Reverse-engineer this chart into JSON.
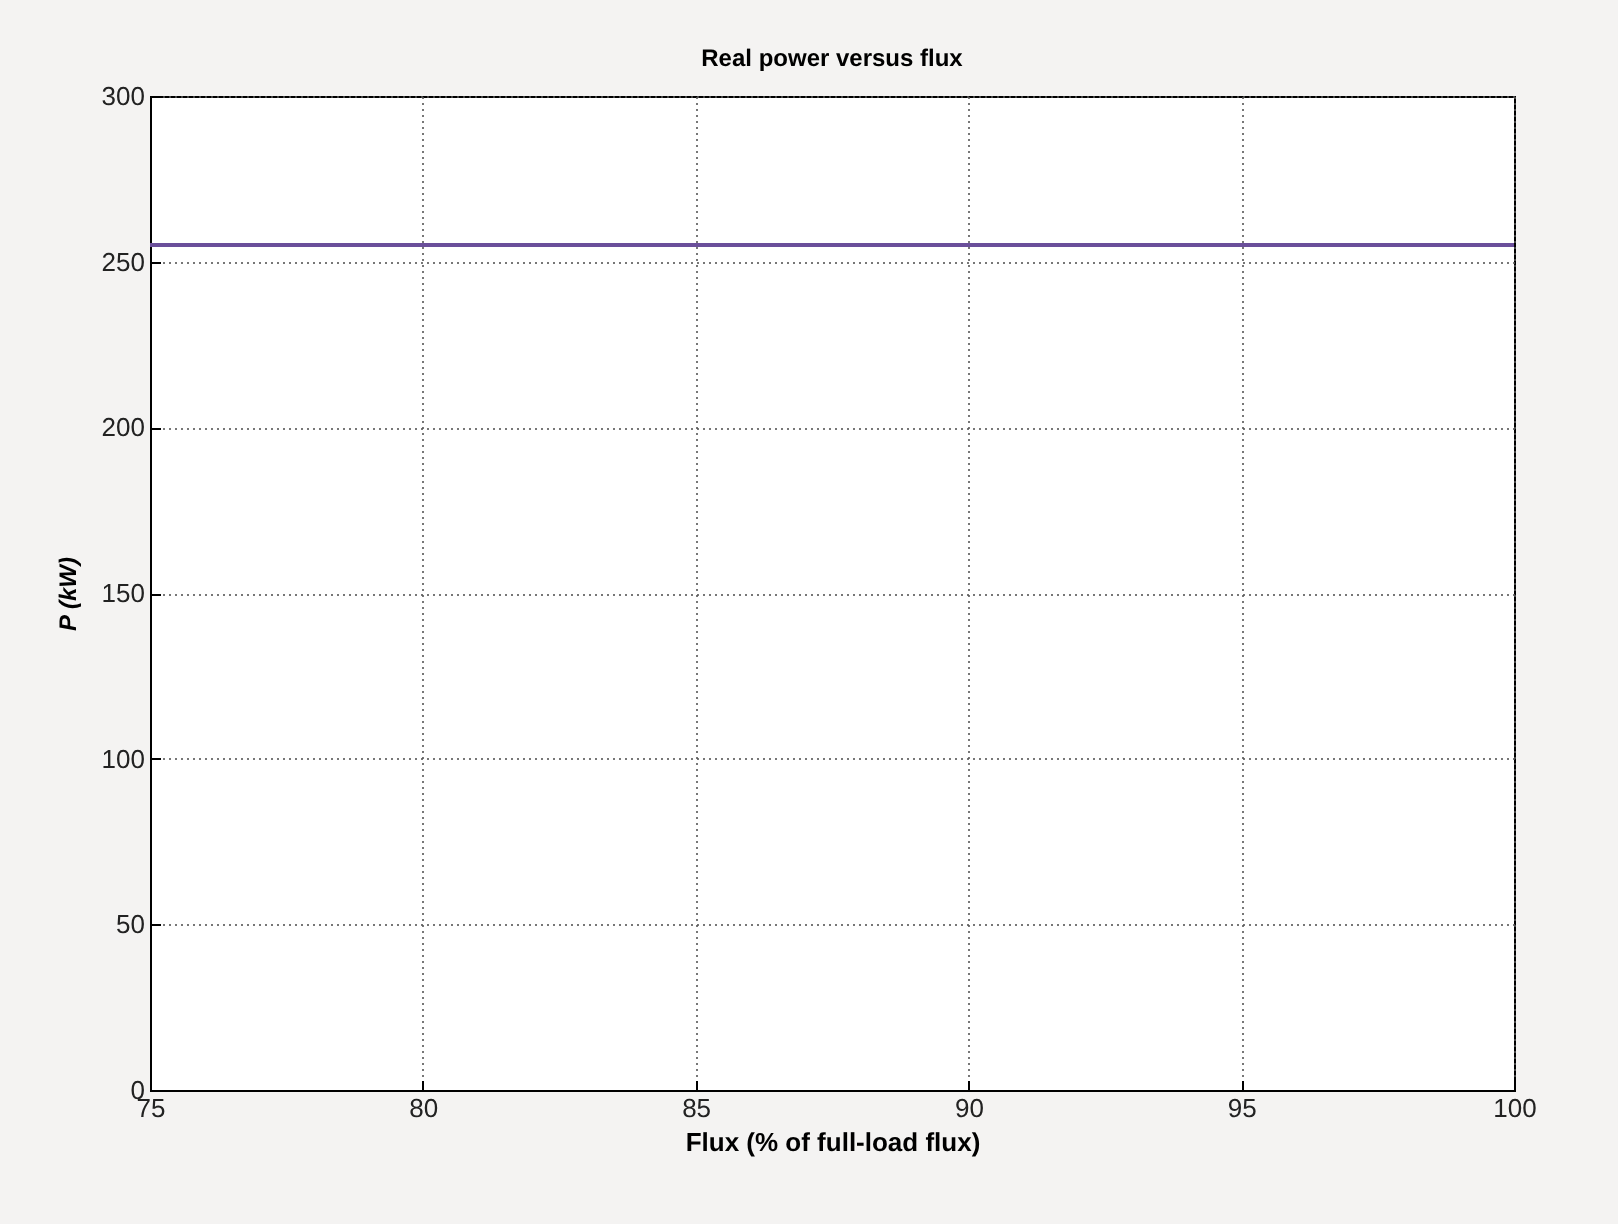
{
  "chart_data": {
    "type": "line",
    "title": "Real power versus flux",
    "xlabel": "Flux (% of full-load flux)",
    "ylabel": "P (kW)",
    "x": [
      75,
      100
    ],
    "series": [
      {
        "color": "#6a4f9a",
        "values": [
          255,
          255
        ]
      }
    ],
    "xlim": [
      75,
      100
    ],
    "xticks": [
      75,
      80,
      85,
      90,
      95,
      100
    ],
    "ylim": [
      0,
      300
    ],
    "yticks": [
      0,
      50,
      100,
      150,
      200,
      250,
      300
    ],
    "grid": true,
    "line_style": "solid",
    "marker": "none"
  }
}
